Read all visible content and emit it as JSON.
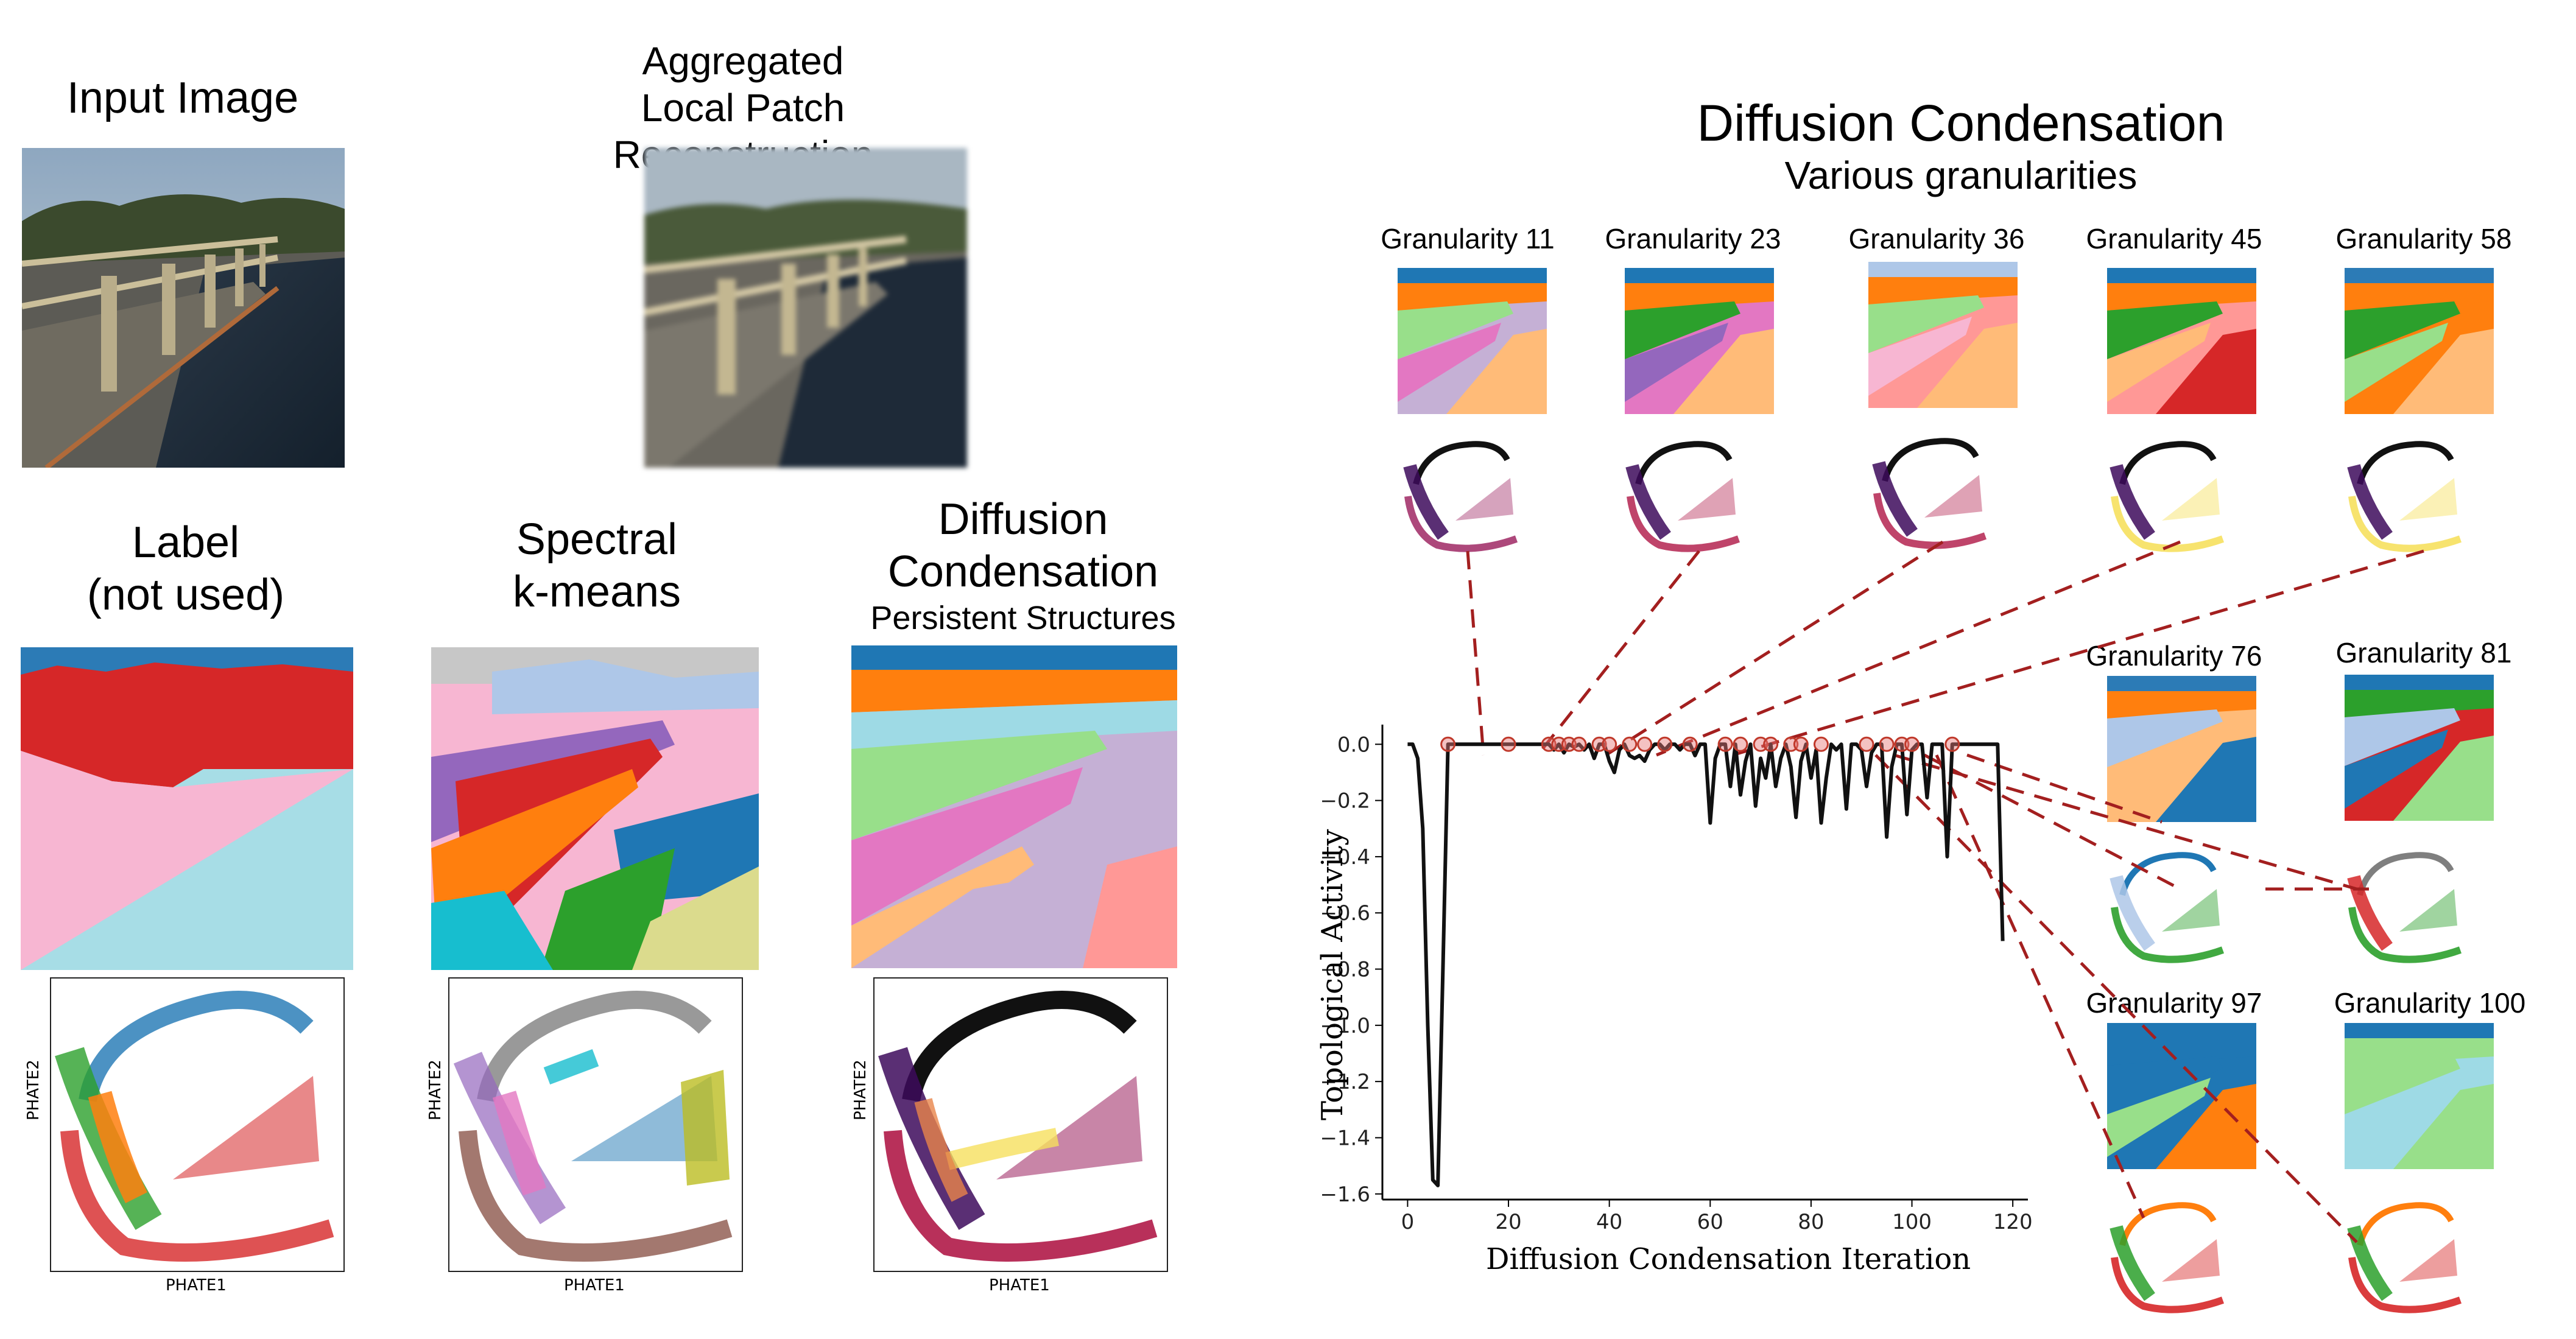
{
  "left": {
    "input_title": "Input Image",
    "recon_title_1": "Aggregated",
    "recon_title_2": "Local Patch Reconstruction",
    "label_title_1": "Label",
    "label_title_2": "(not used)",
    "spectral_title_1": "Spectral",
    "spectral_title_2": "k-means",
    "dc_title_1": "Diffusion",
    "dc_title_2": "Condensation",
    "dc_subtitle": "Persistent Structures",
    "phate_x": "PHATE1",
    "phate_y": "PHATE2"
  },
  "right": {
    "title": "Diffusion Condensation",
    "subtitle": "Various granularities",
    "granularities": [
      "Granularity 11",
      "Granularity 23",
      "Granularity 36",
      "Granularity 45",
      "Granularity 58",
      "Granularity 76",
      "Granularity 81",
      "Granularity 97",
      "Granularity 100"
    ]
  },
  "chart_data": {
    "type": "line",
    "xlabel": "Diffusion Condensation Iteration",
    "ylabel": "Topological Activity",
    "xlim": [
      -5,
      123
    ],
    "ylim": [
      -1.62,
      0.07
    ],
    "xticks": [
      0,
      20,
      40,
      60,
      80,
      100,
      120
    ],
    "yticks": [
      0.0,
      -0.2,
      -0.4,
      -0.6,
      -0.8,
      -1.0,
      -1.2,
      -1.4,
      -1.6
    ],
    "series": [
      {
        "x": [
          0,
          1,
          2,
          3,
          4,
          5,
          6,
          7,
          8,
          9,
          10,
          20,
          28,
          29,
          30,
          31,
          32,
          33,
          34,
          35,
          36,
          37,
          38,
          39,
          40,
          41,
          42,
          43,
          44,
          45,
          46,
          47,
          48,
          49,
          50,
          51,
          52,
          53,
          54,
          55,
          56,
          57,
          58,
          59,
          60,
          61,
          62,
          63,
          64,
          65,
          66,
          67,
          68,
          69,
          70,
          71,
          72,
          73,
          74,
          75,
          76,
          77,
          78,
          79,
          80,
          81,
          82,
          83,
          84,
          85,
          86,
          87,
          88,
          89,
          90,
          91,
          92,
          93,
          94,
          95,
          96,
          97,
          98,
          99,
          100,
          101,
          102,
          103,
          104,
          105,
          106,
          107,
          108,
          109,
          110,
          111,
          112,
          113,
          114,
          115,
          116,
          117,
          118
        ],
        "y": [
          0,
          0,
          -0.05,
          -0.3,
          -1.0,
          -1.55,
          -1.57,
          -0.8,
          0,
          0,
          0,
          0,
          0,
          -0.02,
          0,
          -0.03,
          0,
          -0.01,
          0,
          -0.02,
          0,
          -0.05,
          0,
          0,
          -0.06,
          -0.1,
          -0.02,
          0,
          -0.04,
          -0.05,
          -0.04,
          -0.06,
          -0.02,
          0,
          0,
          -0.02,
          0,
          0,
          -0.02,
          0,
          0,
          -0.04,
          0,
          0,
          -0.28,
          -0.05,
          0,
          0,
          -0.15,
          0,
          -0.18,
          -0.06,
          0,
          -0.22,
          -0.05,
          -0.12,
          0,
          -0.15,
          -0.05,
          0,
          -0.08,
          -0.26,
          -0.06,
          0,
          -0.12,
          -0.02,
          -0.28,
          -0.12,
          0,
          -0.02,
          0,
          -0.23,
          0,
          0,
          -0.02,
          -0.15,
          -0.03,
          0,
          0,
          -0.33,
          -0.08,
          0,
          0,
          -0.25,
          -0.02,
          0,
          0,
          -0.19,
          0,
          0,
          0,
          -0.4,
          0,
          0,
          0,
          0,
          0,
          0,
          0,
          0,
          0,
          0,
          -0.7
        ]
      }
    ],
    "markers_x": [
      8,
      20,
      28,
      30,
      32,
      34,
      38,
      40,
      44,
      47,
      51,
      56,
      63,
      66,
      70,
      72,
      76,
      78,
      82,
      91,
      95,
      98,
      100,
      108
    ]
  },
  "colors": {
    "dashed_line": "#a31f1f",
    "marker_edge": "#c0392b"
  }
}
